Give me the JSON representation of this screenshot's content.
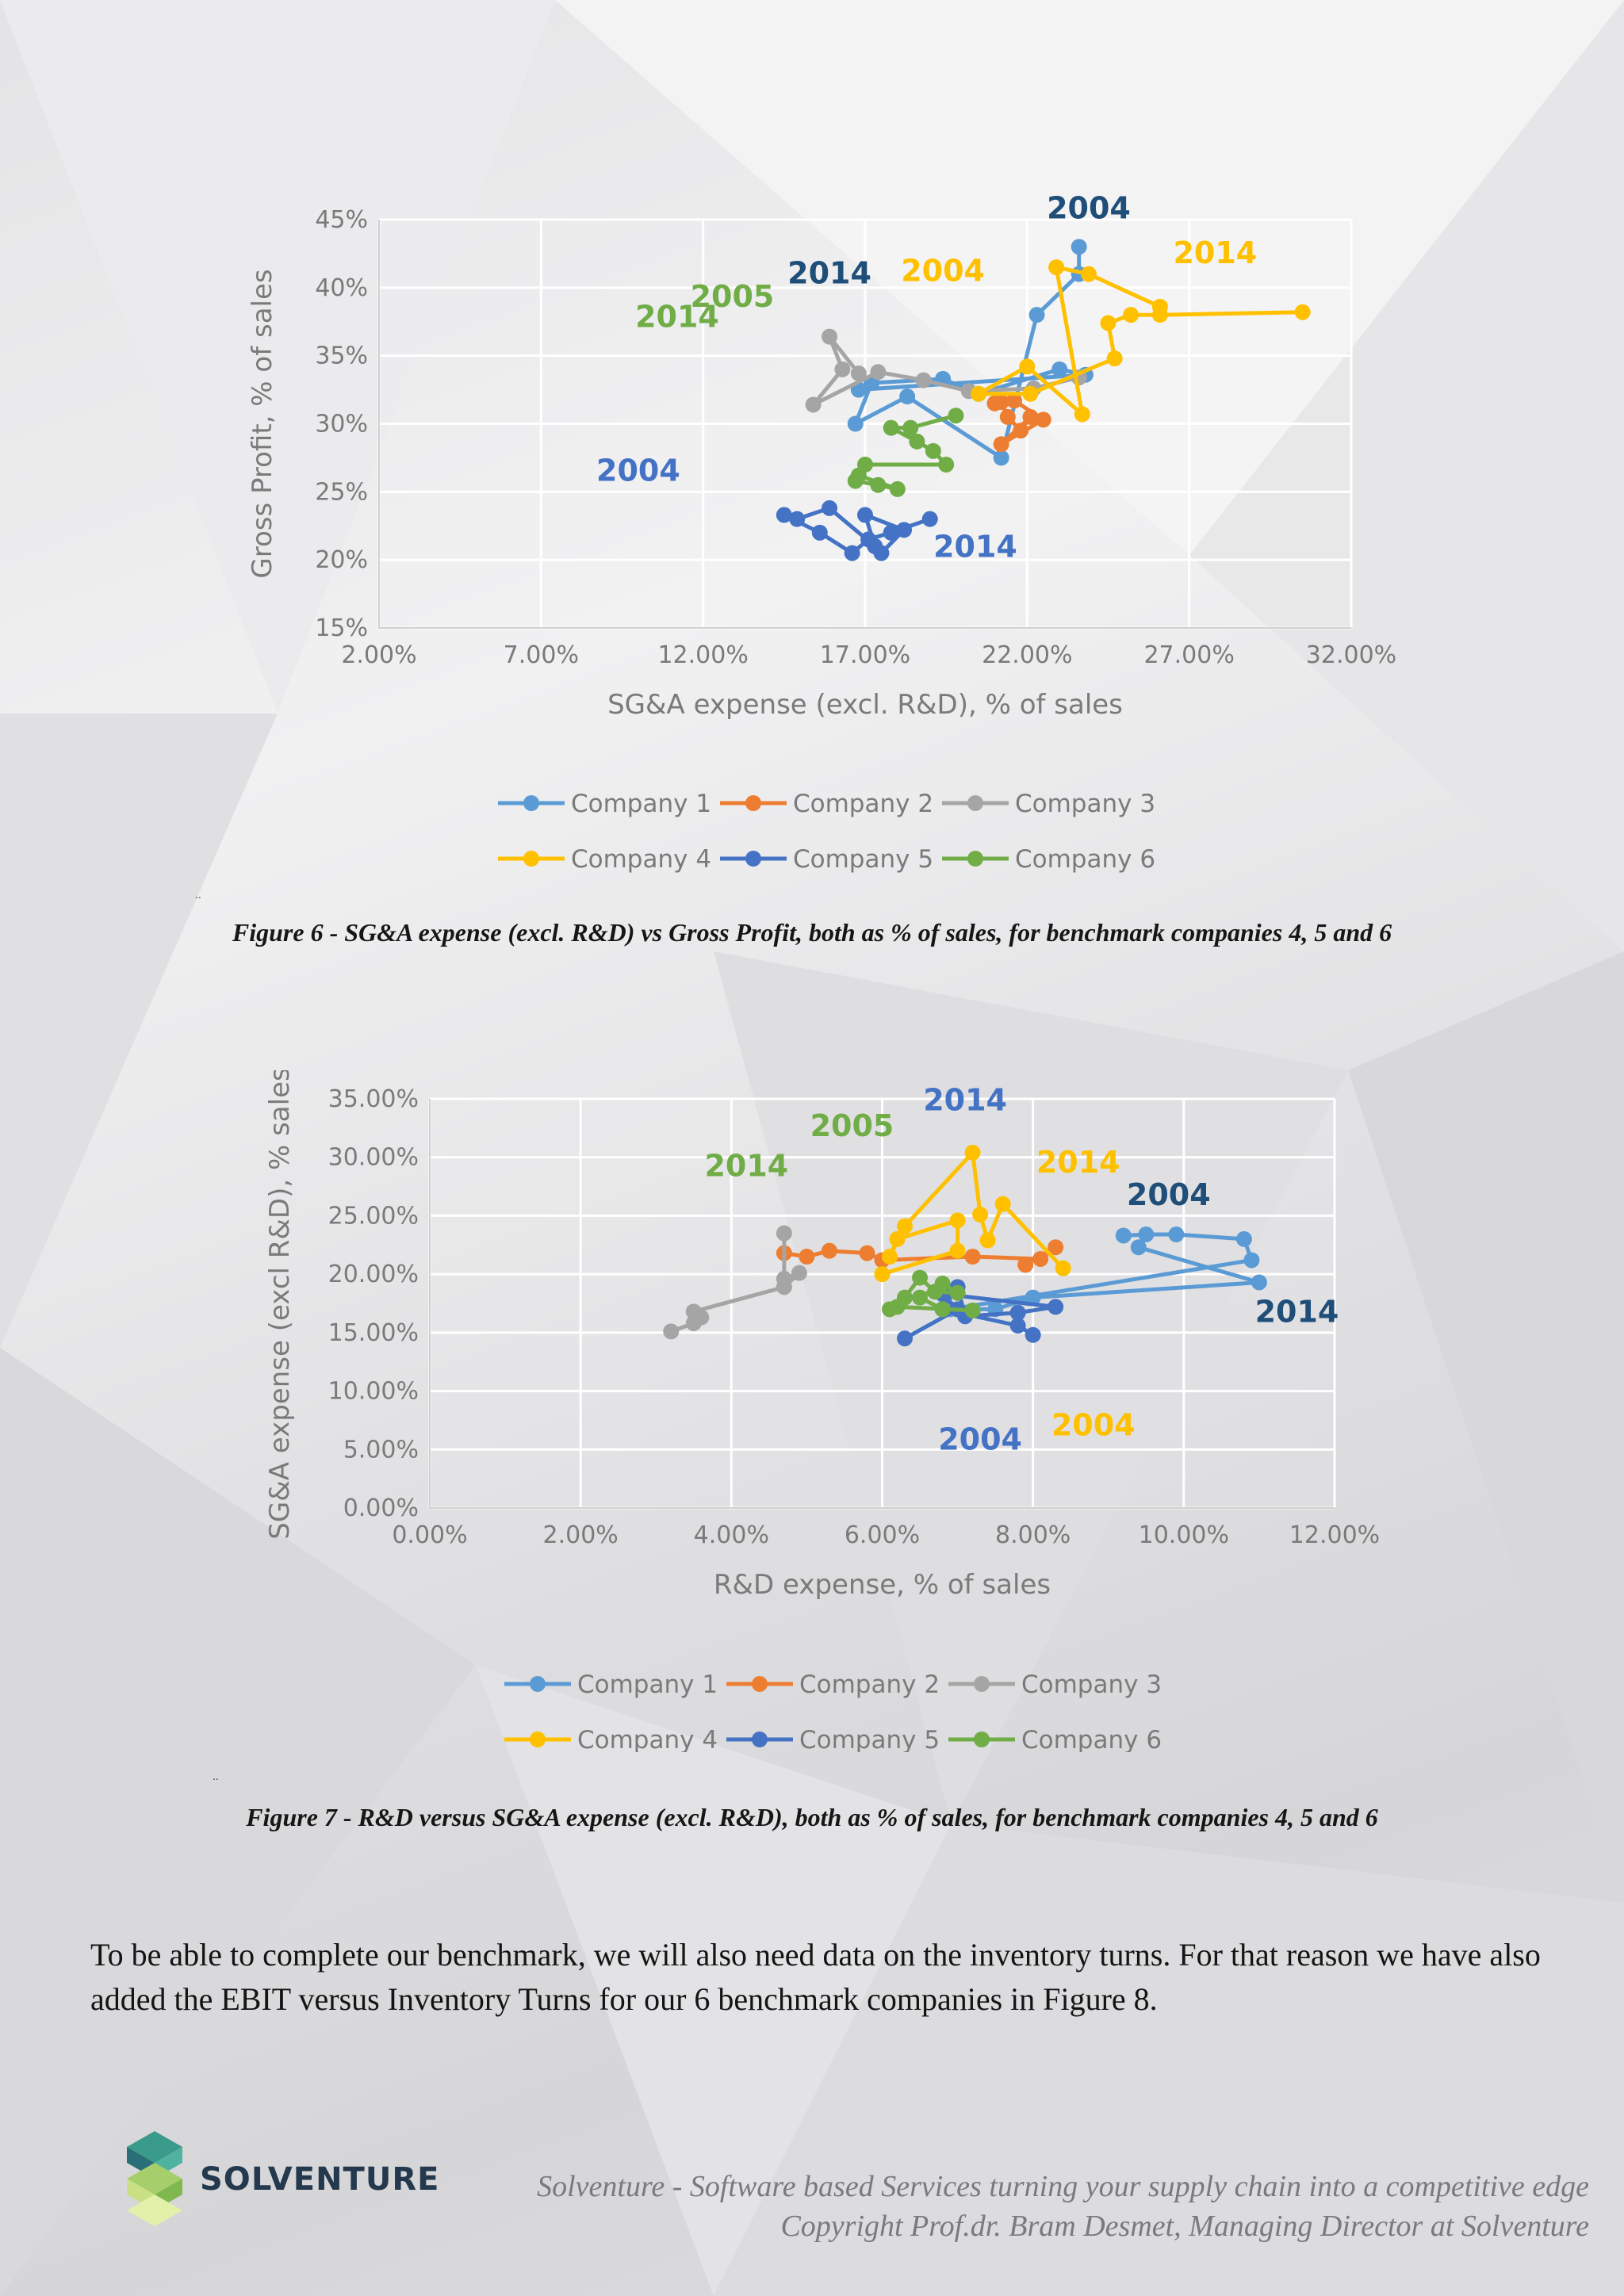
{
  "chart_data": [
    {
      "type": "line",
      "xlabel": "SG&A expense (excl. R&D), % of sales",
      "ylabel": "Gross Profit, % of sales",
      "xlim": [
        2,
        32
      ],
      "ylim": [
        15,
        45
      ],
      "xticks": [
        "2.00%",
        "7.00%",
        "12.00%",
        "17.00%",
        "22.00%",
        "27.00%",
        "32.00%"
      ],
      "yticks": [
        "15%",
        "20%",
        "25%",
        "30%",
        "35%",
        "40%",
        "45%"
      ],
      "grid": true,
      "legend_position": "bottom",
      "series": [
        {
          "name": "Company 1",
          "color": "#5b9bd5",
          "points": [
            [
              23.6,
              43.0
            ],
            [
              23.6,
              41.0
            ],
            [
              22.3,
              38.0
            ],
            [
              21.2,
              27.5
            ],
            [
              18.3,
              32.0
            ],
            [
              16.7,
              30.0
            ],
            [
              17.2,
              33.0
            ],
            [
              19.4,
              33.3
            ],
            [
              20.5,
              32.2
            ],
            [
              23.0,
              34.0
            ],
            [
              23.8,
              33.6
            ],
            [
              16.8,
              32.5
            ]
          ]
        },
        {
          "name": "Company 2",
          "color": "#ed7d31",
          "points": [
            [
              21.2,
              31.6
            ],
            [
              21.4,
              30.5
            ],
            [
              21.8,
              29.5
            ],
            [
              22.1,
              30.5
            ],
            [
              21.2,
              28.5
            ],
            [
              22.5,
              30.3
            ],
            [
              21.6,
              31.7
            ],
            [
              21.0,
              31.5
            ]
          ]
        },
        {
          "name": "Company 3",
          "color": "#a5a5a5",
          "points": [
            [
              23.6,
              33.4
            ],
            [
              22.2,
              32.6
            ],
            [
              20.2,
              32.4
            ],
            [
              18.8,
              33.2
            ],
            [
              17.4,
              33.8
            ],
            [
              15.4,
              31.4
            ],
            [
              16.3,
              34.0
            ],
            [
              15.9,
              36.4
            ],
            [
              16.8,
              33.7
            ]
          ]
        },
        {
          "name": "Company 4",
          "color": "#ffc000",
          "points": [
            [
              30.5,
              38.2
            ],
            [
              26.1,
              38.0
            ],
            [
              25.2,
              38.0
            ],
            [
              24.5,
              37.4
            ],
            [
              24.7,
              34.8
            ],
            [
              22.1,
              32.2
            ],
            [
              20.5,
              32.2
            ],
            [
              22.0,
              34.2
            ],
            [
              23.7,
              30.7
            ],
            [
              22.9,
              41.5
            ],
            [
              23.9,
              41.0
            ],
            [
              26.1,
              38.6
            ]
          ]
        },
        {
          "name": "Company 5",
          "color": "#4472c4",
          "points": [
            [
              19.0,
              23.0
            ],
            [
              17.8,
              22.0
            ],
            [
              17.1,
              21.5
            ],
            [
              16.6,
              20.5
            ],
            [
              15.6,
              22.0
            ],
            [
              14.5,
              23.3
            ],
            [
              14.9,
              23.0
            ],
            [
              15.9,
              23.8
            ],
            [
              17.3,
              21.0
            ],
            [
              17.0,
              23.3
            ],
            [
              18.2,
              22.2
            ],
            [
              17.5,
              20.5
            ]
          ]
        },
        {
          "name": "Company 6",
          "color": "#70ad47",
          "points": [
            [
              19.8,
              30.6
            ],
            [
              18.4,
              29.7
            ],
            [
              17.8,
              29.7
            ],
            [
              18.6,
              28.7
            ],
            [
              19.1,
              28.0
            ],
            [
              19.5,
              27.0
            ],
            [
              17.0,
              27.0
            ],
            [
              16.7,
              25.8
            ],
            [
              17.4,
              25.5
            ],
            [
              18.0,
              25.2
            ],
            [
              16.8,
              26.2
            ]
          ]
        }
      ],
      "annotations": [
        {
          "text": "2004",
          "color": "#1f4e79",
          "x": 23.9,
          "y": 45.1
        },
        {
          "text": "2014",
          "color": "#ffc000",
          "x": 27.8,
          "y": 41.8
        },
        {
          "text": "2004",
          "color": "#ffc000",
          "x": 19.4,
          "y": 40.5
        },
        {
          "text": "2014",
          "color": "#1f4e79",
          "x": 15.9,
          "y": 40.3
        },
        {
          "text": "2005",
          "color": "#70ad47",
          "x": 12.9,
          "y": 38.6
        },
        {
          "text": "2014",
          "color": "#70ad47",
          "x": 11.2,
          "y": 37.1
        },
        {
          "text": "2004",
          "color": "#4472c4",
          "x": 10.0,
          "y": 25.8
        },
        {
          "text": "2014",
          "color": "#4472c4",
          "x": 20.4,
          "y": 20.2
        }
      ]
    },
    {
      "type": "line",
      "xlabel": "R&D expense, % of sales",
      "ylabel": "SG&A expense (excl R&D), % sales",
      "xlim": [
        0,
        12
      ],
      "ylim": [
        0,
        35
      ],
      "xticks": [
        "0.00%",
        "2.00%",
        "4.00%",
        "6.00%",
        "8.00%",
        "10.00%",
        "12.00%"
      ],
      "yticks": [
        "0.00%",
        "5.00%",
        "10.00%",
        "15.00%",
        "20.00%",
        "25.00%",
        "30.00%",
        "35.00%"
      ],
      "grid": true,
      "legend_position": "bottom",
      "series": [
        {
          "name": "Company 1",
          "color": "#5b9bd5",
          "points": [
            [
              9.2,
              23.3
            ],
            [
              9.5,
              23.4
            ],
            [
              9.9,
              23.4
            ],
            [
              10.8,
              23.0
            ],
            [
              10.9,
              21.2
            ],
            [
              6.9,
              17.0
            ],
            [
              7.5,
              17.0
            ],
            [
              8.0,
              18.0
            ],
            [
              11.0,
              19.3
            ],
            [
              9.4,
              22.3
            ]
          ]
        },
        {
          "name": "Company 2",
          "color": "#ed7d31",
          "points": [
            [
              4.7,
              21.8
            ],
            [
              5.0,
              21.5
            ],
            [
              5.3,
              22.0
            ],
            [
              5.8,
              21.8
            ],
            [
              6.0,
              21.2
            ],
            [
              7.2,
              21.5
            ],
            [
              8.1,
              21.3
            ],
            [
              8.3,
              22.3
            ],
            [
              7.9,
              20.8
            ]
          ]
        },
        {
          "name": "Company 3",
          "color": "#a5a5a5",
          "points": [
            [
              4.7,
              23.5
            ],
            [
              4.7,
              19.6
            ],
            [
              4.9,
              20.1
            ],
            [
              4.7,
              18.9
            ],
            [
              3.5,
              16.8
            ],
            [
              3.6,
              16.3
            ],
            [
              3.5,
              15.8
            ],
            [
              3.2,
              15.1
            ]
          ]
        },
        {
          "name": "Company 4",
          "color": "#ffc000",
          "points": [
            [
              8.4,
              20.5
            ],
            [
              7.6,
              26.0
            ],
            [
              7.4,
              22.9
            ],
            [
              7.3,
              25.1
            ],
            [
              7.2,
              30.4
            ],
            [
              6.3,
              24.1
            ],
            [
              6.1,
              21.5
            ],
            [
              6.2,
              23.0
            ],
            [
              7.0,
              24.6
            ],
            [
              7.0,
              22.0
            ],
            [
              6.0,
              20.0
            ]
          ]
        },
        {
          "name": "Company 5",
          "color": "#4472c4",
          "points": [
            [
              6.3,
              14.5
            ],
            [
              7.0,
              17.0
            ],
            [
              6.8,
              18.3
            ],
            [
              8.3,
              17.2
            ],
            [
              7.8,
              16.7
            ],
            [
              7.1,
              16.4
            ],
            [
              7.0,
              18.9
            ],
            [
              6.8,
              17.0
            ],
            [
              7.8,
              15.6
            ],
            [
              8.0,
              14.8
            ]
          ]
        },
        {
          "name": "Company 6",
          "color": "#70ad47",
          "points": [
            [
              6.1,
              17.0
            ],
            [
              6.3,
              18.0
            ],
            [
              6.5,
              19.7
            ],
            [
              6.7,
              18.5
            ],
            [
              7.0,
              18.4
            ],
            [
              6.8,
              19.2
            ],
            [
              6.5,
              18.0
            ],
            [
              6.8,
              17.0
            ],
            [
              7.2,
              16.9
            ],
            [
              6.2,
              17.2
            ]
          ]
        }
      ],
      "annotations": [
        {
          "text": "2005",
          "color": "#70ad47",
          "x": 5.6,
          "y": 31.8
        },
        {
          "text": "2014",
          "color": "#4472c4",
          "x": 7.1,
          "y": 34.0
        },
        {
          "text": "2014",
          "color": "#ffc000",
          "x": 8.6,
          "y": 28.7
        },
        {
          "text": "2014",
          "color": "#70ad47",
          "x": 4.2,
          "y": 28.4
        },
        {
          "text": "2004",
          "color": "#1f4e79",
          "x": 9.8,
          "y": 25.9
        },
        {
          "text": "2014",
          "color": "#1f4e79",
          "x": 11.5,
          "y": 15.9
        },
        {
          "text": "2004",
          "color": "#4472c4",
          "x": 7.3,
          "y": 5.0
        },
        {
          "text": "2004",
          "color": "#ffc000",
          "x": 8.8,
          "y": 6.2
        }
      ]
    }
  ],
  "captions": {
    "figure6": "Figure 6 - SG&A expense (excl. R&D) vs Gross Profit, both as % of sales, for benchmark companies 4, 5 and 6",
    "figure7": "Figure 7 - R&D versus SG&A expense (excl. R&D), both as % of sales, for benchmark companies 4, 5 and 6"
  },
  "body_text": "To be able to complete our benchmark, we will also need data on the inventory turns. For that reason we have also added the EBIT versus Inventory Turns for our 6 benchmark companies in Figure 8.",
  "footer": {
    "tagline": "Solventure - Software based Services turning your supply chain into a competitive edge",
    "copyright": "Copyright Prof.dr. Bram Desmet, Managing Director at Solventure",
    "logo_text": "SOLVENTURE"
  },
  "stray_marks": [
    "..",
    ".."
  ]
}
